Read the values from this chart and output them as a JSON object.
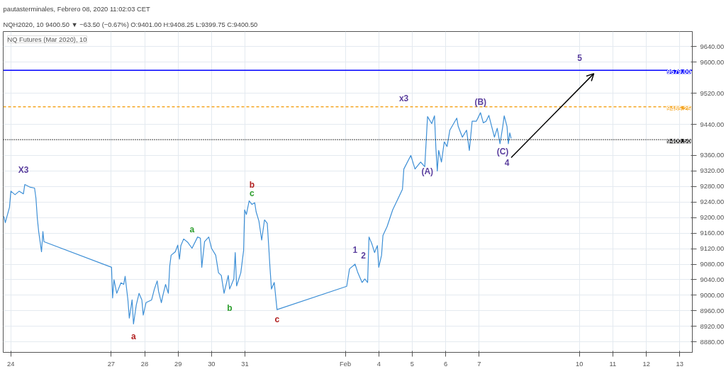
{
  "chart_data": {
    "type": "line",
    "title": "pautasterminales, Febrero 08, 2020 11:02:03 CET",
    "subtitle": "NQH2020, 10 9400.50 ▼ −63.50 (−0.67%) O:9401.00 H:9408.25 L:9399.75 C:9400.50",
    "series": [
      {
        "color": "#3d8fd6",
        "marker": "none",
        "x": [
          "2020-01-23T19:00",
          "2020-01-23T20:00",
          "2020-01-23T23:00",
          "2020-01-24T00:00",
          "2020-01-24T03:00",
          "2020-01-24T06:00",
          "2020-01-24T09:00",
          "2020-01-24T10:00",
          "2020-01-24T14:00",
          "2020-01-24T17:00",
          "2020-01-24T18:00",
          "2020-01-24T19:00",
          "2020-01-24T20:00",
          "2020-01-24T22:00",
          "2020-01-24T23:00",
          "2020-01-24T23:45",
          "2020-01-27T00:15",
          "2020-01-27T01:00",
          "2020-01-27T02:00",
          "2020-01-27T04:00",
          "2020-01-27T07:00",
          "2020-01-27T09:00",
          "2020-01-27T10:00",
          "2020-01-27T12:00",
          "2020-01-27T13:00",
          "2020-01-27T15:00",
          "2020-01-27T16:00",
          "2020-01-27T18:00",
          "2020-01-27T20:00",
          "2020-01-27T22:00",
          "2020-01-27T23:00",
          "2020-01-28T01:00",
          "2020-01-28T05:00",
          "2020-01-28T07:00",
          "2020-01-28T09:00",
          "2020-01-28T10:00",
          "2020-01-28T12:00",
          "2020-01-28T13:00",
          "2020-01-28T15:00",
          "2020-01-28T17:00",
          "2020-01-28T18:00",
          "2020-01-28T19:00",
          "2020-01-28T22:00",
          "2020-01-28T23:45",
          "2020-01-29T01:00",
          "2020-01-29T02:00",
          "2020-01-29T04:00",
          "2020-01-29T07:00",
          "2020-01-29T10:00",
          "2020-01-29T14:00",
          "2020-01-29T16:00",
          "2020-01-29T17:00",
          "2020-01-29T19:00",
          "2020-01-29T22:00",
          "2020-01-30T00:00",
          "2020-01-30T03:00",
          "2020-01-30T05:00",
          "2020-01-30T07:00",
          "2020-01-30T09:00",
          "2020-01-30T12:00",
          "2020-01-30T13:00",
          "2020-01-30T16:00",
          "2020-01-30T17:00",
          "2020-01-30T18:00",
          "2020-01-30T21:00",
          "2020-01-30T23:00",
          "2020-01-30T23:45",
          "2020-01-31T01:00",
          "2020-01-31T03:00",
          "2020-01-31T05:00",
          "2020-01-31T07:00",
          "2020-01-31T08:00",
          "2020-01-31T10:00",
          "2020-01-31T12:00",
          "2020-01-31T14:00",
          "2020-01-31T16:00",
          "2020-01-31T17:00",
          "2020-01-31T18:00",
          "2020-01-31T19:00",
          "2020-01-31T21:00",
          "2020-01-31T23:00",
          "2020-02-03T01:00",
          "2020-02-03T03:00",
          "2020-02-03T07:00",
          "2020-02-03T09:00",
          "2020-02-03T12:00",
          "2020-02-03T14:00",
          "2020-02-03T16:00",
          "2020-02-03T17:00",
          "2020-02-03T19:00",
          "2020-02-03T21:00",
          "2020-02-03T23:00",
          "2020-02-04T00:00",
          "2020-02-04T02:00",
          "2020-02-04T03:00",
          "2020-02-04T06:00",
          "2020-02-04T10:00",
          "2020-02-04T14:00",
          "2020-02-04T17:00",
          "2020-02-04T18:00",
          "2020-02-04T23:00",
          "2020-02-05T02:00",
          "2020-02-05T06:00",
          "2020-02-05T09:00",
          "2020-02-05T10:00",
          "2020-02-05T11:00",
          "2020-02-05T14:00",
          "2020-02-05T16:00",
          "2020-02-05T17:00",
          "2020-02-05T18:00",
          "2020-02-05T19:00",
          "2020-02-05T21:00",
          "2020-02-05T23:00",
          "2020-02-06T01:00",
          "2020-02-06T03:00",
          "2020-02-06T08:00",
          "2020-02-06T09:00",
          "2020-02-06T12:00",
          "2020-02-06T15:00",
          "2020-02-06T17:00",
          "2020-02-06T19:00",
          "2020-02-06T22:00",
          "2020-02-07T01:00",
          "2020-02-07T03:00",
          "2020-02-07T05:00",
          "2020-02-07T07:00",
          "2020-02-07T09:00",
          "2020-02-07T11:00",
          "2020-02-07T13:00",
          "2020-02-07T15:00",
          "2020-02-07T17:00",
          "2020-02-07T18:00",
          "2020-02-07T20:00",
          "2020-02-07T21:00",
          "2020-02-07T22:00",
          "2020-02-07T23:00"
        ],
        "values": [
          9203,
          9187,
          9226,
          9268,
          9259,
          9268,
          9261,
          9285,
          9278,
          9276,
          9250,
          9198,
          9163,
          9112,
          9164,
          9138,
          9072,
          8993,
          9040,
          9005,
          9032,
          9028,
          9049,
          8988,
          8941,
          8988,
          8926,
          8975,
          9005,
          8988,
          8949,
          8981,
          8988,
          9016,
          9037,
          9010,
          8981,
          8998,
          9028,
          9005,
          9075,
          9103,
          9112,
          9129,
          9093,
          9128,
          9145,
          9136,
          9121,
          9150,
          9147,
          9072,
          9138,
          9150,
          9121,
          9103,
          9058,
          9051,
          9005,
          9051,
          9016,
          9042,
          9110,
          9024,
          9058,
          9115,
          9220,
          9208,
          9243,
          9234,
          9238,
          9215,
          9191,
          9142,
          9194,
          9185,
          9128,
          9068,
          9016,
          9033,
          8963,
          9023,
          9068,
          9080,
          9058,
          9033,
          9042,
          9033,
          9150,
          9133,
          9110,
          9128,
          9072,
          9103,
          9154,
          9177,
          9220,
          9250,
          9273,
          9325,
          9360,
          9325,
          9343,
          9331,
          9395,
          9460,
          9442,
          9462,
          9378,
          9320,
          9373,
          9343,
          9395,
          9383,
          9425,
          9456,
          9435,
          9407,
          9425,
          9373,
          9448,
          9448,
          9470,
          9444,
          9448,
          9463,
          9435,
          9407,
          9430,
          9390,
          9435,
          9462,
          9435,
          9390,
          9418,
          9404
        ]
      }
    ],
    "xlim": [
      "2020-01-23T18:30",
      "2020-02-13T09:00"
    ],
    "ylim": [
      8853,
      9679
    ],
    "xticks": [
      {
        "value": "2020-01-24",
        "label": "24"
      },
      {
        "value": "2020-01-27",
        "label": "27"
      },
      {
        "value": "2020-01-28",
        "label": "28"
      },
      {
        "value": "2020-01-29",
        "label": "29"
      },
      {
        "value": "2020-01-30",
        "label": "30"
      },
      {
        "value": "2020-01-31",
        "label": "31"
      },
      {
        "value": "2020-02-03",
        "label": "Feb"
      },
      {
        "value": "2020-02-04",
        "label": "4"
      },
      {
        "value": "2020-02-05",
        "label": "5"
      },
      {
        "value": "2020-02-06",
        "label": "6"
      },
      {
        "value": "2020-02-07",
        "label": "7"
      },
      {
        "value": "2020-02-10",
        "label": "10"
      },
      {
        "value": "2020-02-11",
        "label": "11"
      },
      {
        "value": "2020-02-12",
        "label": "12"
      },
      {
        "value": "2020-02-13",
        "label": "13"
      }
    ],
    "yticks": [
      {
        "value": 8880,
        "label": "8880.00"
      },
      {
        "value": 8920,
        "label": "8920.00"
      },
      {
        "value": 8960,
        "label": "8960.00"
      },
      {
        "value": 9000,
        "label": "9000.00"
      },
      {
        "value": 9040,
        "label": "9040.00"
      },
      {
        "value": 9080,
        "label": "9080.00"
      },
      {
        "value": 9120,
        "label": "9120.00"
      },
      {
        "value": 9160,
        "label": "9160.00"
      },
      {
        "value": 9200,
        "label": "9200.00"
      },
      {
        "value": 9240,
        "label": "9240.00"
      },
      {
        "value": 9280,
        "label": "9280.00"
      },
      {
        "value": 9320,
        "label": "9320.00"
      },
      {
        "value": 9360,
        "label": "9360.00"
      },
      {
        "value": 9440,
        "label": "9440.00"
      },
      {
        "value": 9520,
        "label": "9520.00"
      },
      {
        "value": 9600,
        "label": "9600.00"
      },
      {
        "value": 9640,
        "label": "9640.00"
      }
    ],
    "ref_lines": [
      {
        "axis": "y",
        "value": 9579,
        "label": "9579.00",
        "color": "#0000ff",
        "line_style": "solid"
      },
      {
        "axis": "y",
        "value": 9485.25,
        "label": "9485.25",
        "color": "#f5a623",
        "line_style": "dashed"
      },
      {
        "axis": "y",
        "value": 9400.5,
        "label": "9400.50",
        "color": "#000000",
        "line_style": "dotted"
      }
    ],
    "annotations": [
      "NQ Futures (Mar 2020), 10",
      "X3",
      "a",
      "a",
      "b",
      "b",
      "c",
      "c",
      "1",
      "2",
      "x3",
      "(A)",
      "(B)",
      "(C)",
      "4",
      "5"
    ],
    "grid": true,
    "line_style": "solid"
  }
}
